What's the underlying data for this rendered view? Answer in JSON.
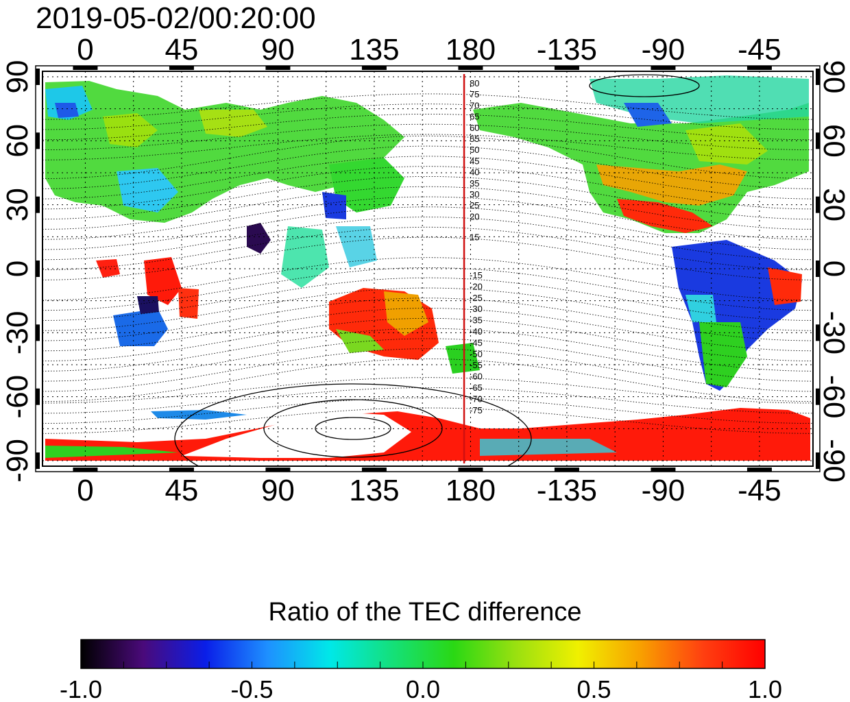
{
  "title": "2019-05-02/00:20:00",
  "map": {
    "x_ticks": [
      "0",
      "45",
      "90",
      "135",
      "180",
      "-135",
      "-90",
      "-45"
    ],
    "y_ticks": [
      "90",
      "60",
      "30",
      "0",
      "-30",
      "-60",
      "-90"
    ],
    "terminator_longitude": 177,
    "contour_labels_north": [
      "80",
      "75",
      "70",
      "65",
      "60",
      "55",
      "50",
      "45",
      "40",
      "35",
      "30",
      "25",
      "20",
      "15"
    ],
    "contour_labels_south": [
      "-15",
      "-20",
      "-25",
      "-30",
      "-35",
      "-40",
      "-45",
      "-50",
      "-55",
      "-60",
      "-65",
      "-70",
      "-75"
    ],
    "colors": {
      "terminator": "#d01010",
      "frame": "#000000"
    }
  },
  "colorbar": {
    "title": "Ratio of the TEC difference",
    "min": -1.0,
    "max": 1.0,
    "tick_labels": [
      "-1.0",
      "-0.5",
      "0.0",
      "0.5",
      "1.0"
    ],
    "colormap": [
      "#000000",
      "#4a0a7a",
      "#0a1ee8",
      "#1e90ff",
      "#00e8e8",
      "#14e07a",
      "#2ad814",
      "#9ae010",
      "#f0f000",
      "#f8a000",
      "#ff4010",
      "#ff0000"
    ]
  }
}
